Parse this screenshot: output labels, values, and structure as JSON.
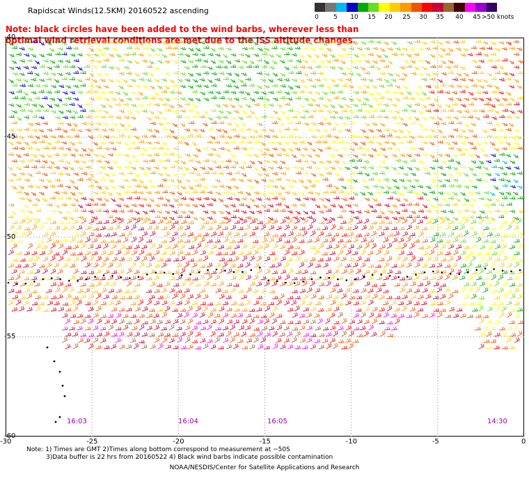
{
  "header": {
    "title": "Rapidscat Winds(12.5KM) 20160522 ascending",
    "note": "Note: black circles have been added to the wind barbs, wherever less than optimal wind retrieval conditions are met due to the ISS altitude changes."
  },
  "legend": {
    "labels": [
      "0",
      "5",
      "10",
      "15",
      "20",
      "25",
      "30",
      "35",
      "40",
      "45",
      ">50 knots"
    ],
    "colors": [
      "#333333",
      "#777777",
      "#00bbee",
      "#0000cc",
      "#00aa00",
      "#66dd22",
      "#ffff00",
      "#ffcc00",
      "#ff9900",
      "#ee5500",
      "#ff0000",
      "#cc0033",
      "#996633",
      "#440000",
      "#ff00ff",
      "#9900cc",
      "#330066"
    ]
  },
  "map": {
    "lat_labels": [
      "-40",
      "-45",
      "-50",
      "-55",
      "-60"
    ],
    "lon_labels": [
      "-30",
      "-25",
      "-20",
      "-15",
      "-10",
      "-5",
      "0"
    ],
    "time_labels": [
      "16:03",
      "16:04",
      "16:05",
      "14:30"
    ]
  },
  "footer": {
    "line1": "Note: 1) Times are GMT 2)Times along bottom correspond to measurement at ~50S",
    "line2": "3)Data buffer is 22 hrs from 20160522 4) Black wind barbs indicate possible contamination",
    "credit": "NOAA/NESDIS/Center for Satellite Applications and Research"
  }
}
